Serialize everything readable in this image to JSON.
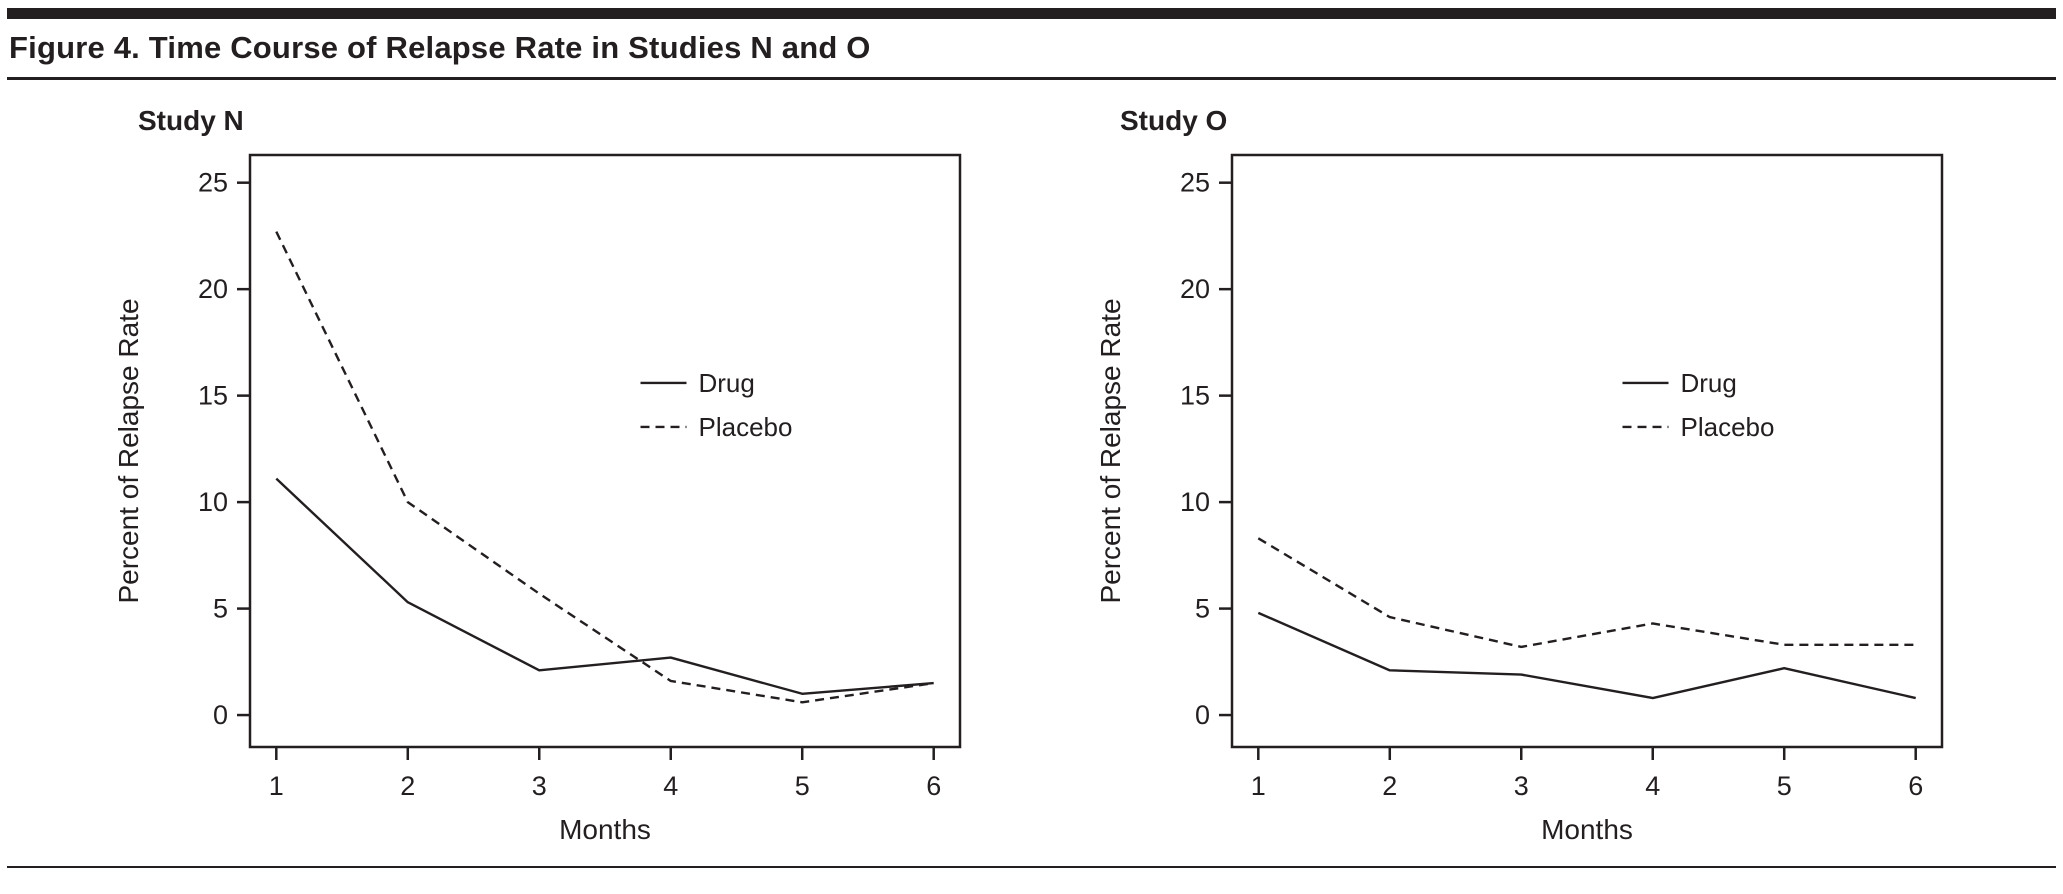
{
  "figure": {
    "title": "Figure 4. Time Course of Relapse Rate in Studies N and O"
  },
  "colors": {
    "ink": "#231f20"
  },
  "chart_data": [
    {
      "type": "line",
      "title": "Study N",
      "xlabel": "Months",
      "ylabel": "Percent of Relapse Rate",
      "x": [
        1,
        2,
        3,
        4,
        5,
        6
      ],
      "x_range": [
        0.8,
        6.2
      ],
      "y_range": [
        -1.5,
        26.3
      ],
      "yticks": [
        0,
        5,
        10,
        15,
        20,
        25
      ],
      "grid": false,
      "legend_position": "center-right-inside",
      "series": [
        {
          "name": "Drug",
          "style": "solid",
          "values": [
            11.1,
            5.3,
            2.1,
            2.7,
            1.0,
            1.5
          ]
        },
        {
          "name": "Placebo",
          "style": "dashed",
          "values": [
            22.7,
            10.0,
            5.7,
            1.6,
            0.6,
            1.5
          ]
        }
      ]
    },
    {
      "type": "line",
      "title": "Study O",
      "xlabel": "Months",
      "ylabel": "Percent of Relapse Rate",
      "x": [
        1,
        2,
        3,
        4,
        5,
        6
      ],
      "x_range": [
        0.8,
        6.2
      ],
      "y_range": [
        -1.5,
        26.3
      ],
      "yticks": [
        0,
        5,
        10,
        15,
        20,
        25
      ],
      "grid": false,
      "legend_position": "center-right-inside",
      "series": [
        {
          "name": "Drug",
          "style": "solid",
          "values": [
            4.8,
            2.1,
            1.9,
            0.8,
            2.2,
            0.8
          ]
        },
        {
          "name": "Placebo",
          "style": "dashed",
          "values": [
            8.3,
            4.6,
            3.2,
            4.3,
            3.3,
            3.3
          ]
        }
      ]
    }
  ]
}
